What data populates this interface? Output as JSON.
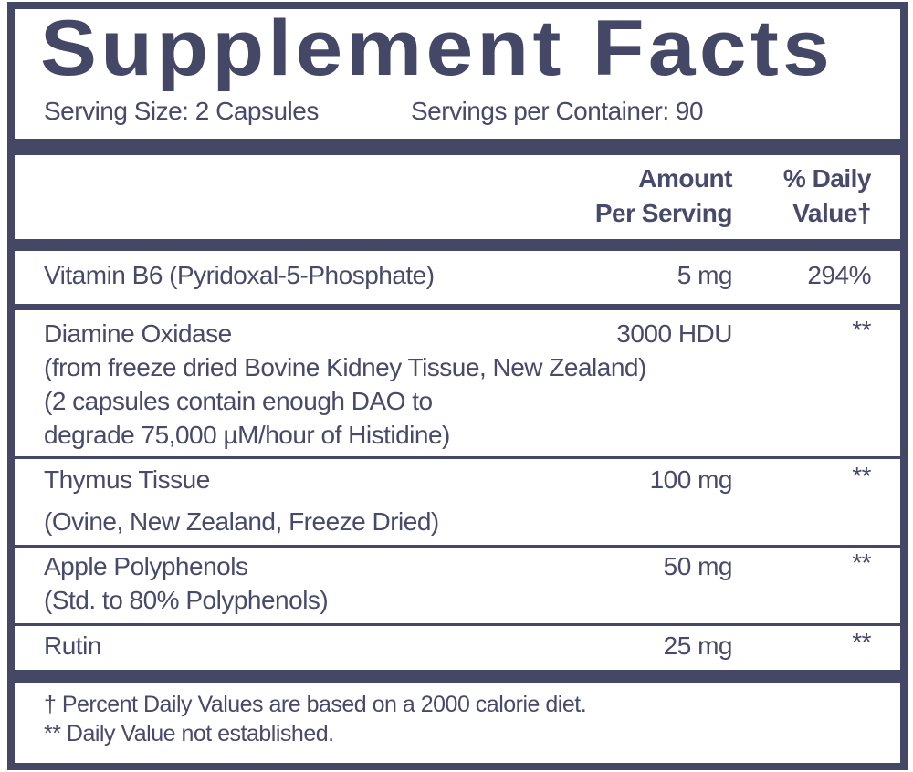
{
  "title": "Supplement Facts",
  "serving_size": "Serving Size: 2 Capsules",
  "servings_per_container": "Servings per Container: 90",
  "header": {
    "amount_line1": "Amount",
    "amount_line2": "Per Serving",
    "dv_line1": "% Daily",
    "dv_line2": "Value†"
  },
  "rows": [
    {
      "name": "Vitamin B6 (Pyridoxal-5-Phosphate)",
      "amount": "5 mg",
      "dv": "294%"
    },
    {
      "name": "Diamine Oxidase",
      "sub1": "(from freeze dried Bovine Kidney Tissue, New Zealand)",
      "sub2": "(2 capsules contain enough DAO to",
      "sub3": "degrade 75,000 µM/hour of Histidine)",
      "amount": "3000 HDU",
      "dv": "**"
    },
    {
      "name": "Thymus Tissue",
      "sub1": "(Ovine, New Zealand, Freeze Dried)",
      "amount": "100 mg",
      "dv": "**"
    },
    {
      "name": "Apple Polyphenols",
      "sub1": "(Std. to 80% Polyphenols)",
      "amount": "50 mg",
      "dv": "**"
    },
    {
      "name": "Rutin",
      "amount": "25 mg",
      "dv": "**"
    }
  ],
  "footnotes": [
    "† Percent Daily Values are based on a 2000 calorie diet.",
    "** Daily Value not established."
  ],
  "colors": {
    "label": "#454766"
  }
}
